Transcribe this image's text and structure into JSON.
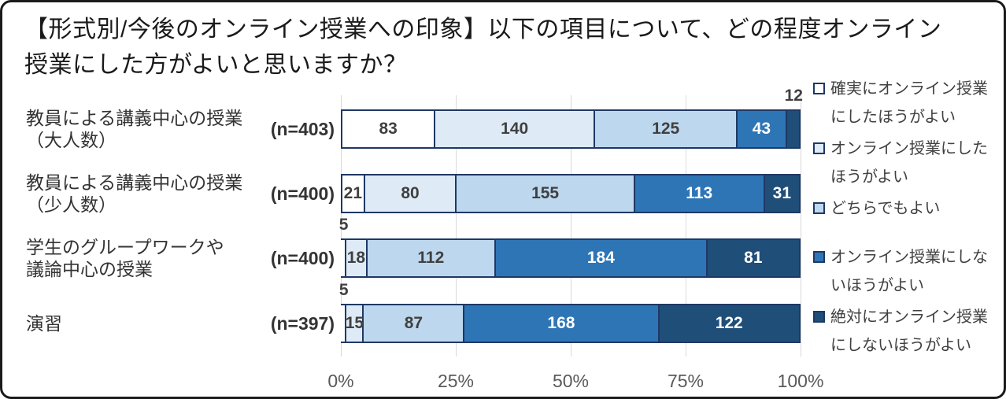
{
  "title": {
    "lines": [
      "【形式別/今後のオンライン授業への印象】以下の項目について、どの程度オンライン",
      "授業にした方がよいと思いますか？"
    ]
  },
  "chart_data": {
    "type": "bar",
    "variant": "horizontal_100_percent_stacked",
    "title": "【形式別/今後のオンライン授業への印象】以下の項目について、どの程度オンライン授業にした方がよいと思いますか？",
    "categories": [
      "教員による講義中心の授業（大人数）",
      "教員による講義中心の授業（少人数）",
      "学生のグループワークや議論中心の授業",
      "演習"
    ],
    "category_label_lines": [
      [
        "教員による講義中心の授業",
        "（大人数）"
      ],
      [
        "教員による講義中心の授業",
        "（少人数）"
      ],
      [
        "学生のグループワークや",
        "議論中心の授業"
      ],
      [
        "演習"
      ]
    ],
    "n_labels": [
      "(n=403)",
      "(n=400)",
      "(n=400)",
      "(n=397)"
    ],
    "series": [
      {
        "name": "確実にオンライン授業にしたほうがよい",
        "color": "#FFFFFF",
        "label_color": "#404040",
        "values": [
          83,
          21,
          5,
          5
        ]
      },
      {
        "name": "オンライン授業にしたほうがよい",
        "color": "#DEEBF7",
        "label_color": "#404040",
        "values": [
          140,
          80,
          18,
          15
        ]
      },
      {
        "name": "どちらでもよい",
        "color": "#BDD7EE",
        "label_color": "#404040",
        "values": [
          125,
          155,
          112,
          87
        ]
      },
      {
        "name": "オンライン授業にしないほうがよい",
        "color": "#2E75B6",
        "label_color": "#FFFFFF",
        "values": [
          43,
          113,
          184,
          168
        ]
      },
      {
        "name": "絶対にオンライン授業にしないほうがよい",
        "color": "#1F4E79",
        "label_color": "#FFFFFF",
        "values": [
          12,
          31,
          81,
          122
        ]
      }
    ],
    "x_axis": {
      "ticks": [
        "0%",
        "25%",
        "50%",
        "75%",
        "100%"
      ],
      "range_percent": [
        0,
        100
      ],
      "gridlines": true
    },
    "legend": {
      "position": "right"
    },
    "colors": {
      "segment_border": "#1F3864",
      "gridline": "#D9D9D9",
      "axis_text": "#595959",
      "outside_label_text": "#404040",
      "frame_border": "#1A1A1A"
    }
  }
}
